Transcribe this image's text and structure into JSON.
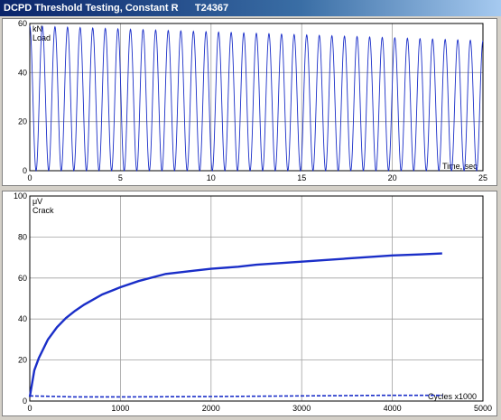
{
  "window": {
    "title": "DCPD Threshold Testing, Constant R      T24367"
  },
  "colors": {
    "trace": "#1a2ec8",
    "grid": "#a0a0a0",
    "title_bar": "#0a246a"
  },
  "chart_data": [
    {
      "type": "line",
      "title": "",
      "unit_label": "kN",
      "series_label": "Load",
      "xlabel": "Time, sec",
      "xlim": [
        0,
        25
      ],
      "ylim": [
        0,
        60
      ],
      "x_ticks": [
        "0",
        "5",
        "10",
        "15",
        "20",
        "25"
      ],
      "y_ticks": [
        "0",
        "20",
        "40",
        "60"
      ],
      "grid": true,
      "series": [
        {
          "cycles": 36,
          "y_min": 0,
          "y_max_start": 59,
          "y_max_end": 53
        }
      ]
    },
    {
      "type": "line",
      "title": "",
      "unit_label": "μV",
      "series_label": "Crack",
      "xlabel": "Cycles x1000",
      "xlim": [
        0,
        5000
      ],
      "ylim": [
        0,
        100
      ],
      "x_ticks": [
        "0",
        "1000",
        "2000",
        "3000",
        "4000",
        "5000"
      ],
      "y_ticks": [
        "0",
        "20",
        "40",
        "60",
        "80",
        "100"
      ],
      "grid": true,
      "series": [
        {
          "x": [
            0,
            50,
            100,
            200,
            300,
            400,
            500,
            600,
            800,
            1000,
            1200,
            1500,
            1800,
            2000,
            2300,
            2500,
            3000,
            3500,
            4000,
            4300,
            4550
          ],
          "y": [
            2,
            15,
            21,
            30,
            36,
            40.5,
            44,
            47,
            52,
            55.5,
            58.5,
            62,
            63.5,
            64.5,
            65.5,
            66.5,
            68,
            69.5,
            71,
            71.5,
            72
          ]
        },
        {
          "x": [
            0,
            500,
            1000,
            2000,
            3000,
            4000,
            4550
          ],
          "y": [
            2.5,
            2,
            2,
            2.2,
            2.5,
            2.8,
            2.8
          ]
        }
      ]
    }
  ]
}
